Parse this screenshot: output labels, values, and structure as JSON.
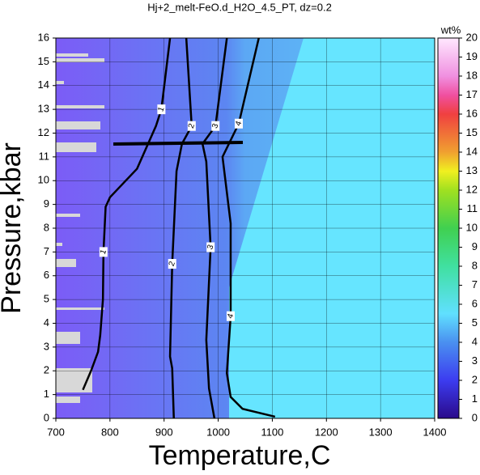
{
  "chart_data": {
    "type": "contour",
    "title": "Hj+2_melt-FeO.d_H2O_4.5_PT, dz=0.2",
    "xlabel": "Temperature,C",
    "ylabel": "Pressure,kbar",
    "xlim": [
      700,
      1400
    ],
    "ylim": [
      0,
      16
    ],
    "xticks": [
      700,
      800,
      900,
      1000,
      1100,
      1200,
      1300,
      1400
    ],
    "yticks": [
      0,
      1,
      2,
      3,
      4,
      5,
      6,
      7,
      8,
      9,
      10,
      11,
      12,
      13,
      14,
      15,
      16
    ],
    "grid": true,
    "contours": [
      {
        "level": 1,
        "x": [
          911,
          895,
          885,
          850,
          800,
          792,
          788,
          787,
          782,
          778,
          765,
          750
        ],
        "y": [
          16,
          13,
          12.3,
          10.5,
          9.3,
          8.9,
          7,
          5,
          3.5,
          2.8,
          2,
          1.2
        ]
      },
      {
        "level": 2,
        "x": [
          941,
          951,
          933,
          923,
          915,
          911,
          915,
          918
        ],
        "y": [
          16,
          12.3,
          11.55,
          10.4,
          6.5,
          2.6,
          2.1,
          0
        ]
      },
      {
        "level": 3,
        "x": [
          1016,
          995,
          971,
          978,
          986,
          978,
          983,
          993
        ],
        "y": [
          16,
          12.3,
          11.55,
          10.8,
          7.2,
          3.3,
          1.26,
          0
        ]
      },
      {
        "level": 4,
        "x": [
          1075,
          1038,
          1008,
          1023,
          1023,
          1016,
          1023,
          1045,
          1105
        ],
        "y": [
          16,
          12.4,
          11,
          8.2,
          4.3,
          1.9,
          0.9,
          0.4,
          0.07
        ]
      }
    ],
    "colorbar": {
      "label": "wt%",
      "lim": [
        0,
        20
      ],
      "ticks": [
        0,
        1,
        2,
        3,
        4,
        5,
        6,
        7,
        8,
        9,
        10,
        11,
        12,
        13,
        14,
        15,
        16,
        17,
        18,
        19,
        20
      ],
      "stops": [
        0,
        2,
        4,
        5.5,
        8,
        10,
        12,
        13,
        14,
        16,
        17,
        18,
        20
      ],
      "colors": [
        "#2a0a8a",
        "#3c3cf0",
        "#4a90f0",
        "#60e0ff",
        "#40e0a0",
        "#40d050",
        "#a0e020",
        "#f0f020",
        "#f0a030",
        "#f04040",
        "#f050a0",
        "#f090e0",
        "#ffe8ff"
      ]
    }
  }
}
